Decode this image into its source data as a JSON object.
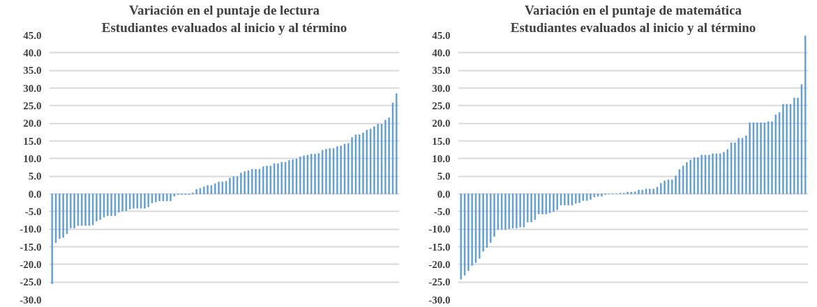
{
  "chart_data": [
    {
      "type": "bar",
      "title": "Variación en el puntaje de lectura",
      "subtitle": "Estudiantes evaluados al inicio y al término",
      "categories": [
        null,
        null,
        null,
        null,
        null,
        null,
        null,
        null,
        null,
        null,
        null,
        null,
        null,
        null,
        null,
        null,
        null,
        null,
        null,
        null,
        null,
        null,
        null,
        null,
        null,
        null,
        null,
        null,
        null,
        null,
        null,
        null,
        null,
        null,
        null,
        null,
        null,
        null,
        null,
        null,
        null,
        null,
        null,
        null,
        null,
        null,
        null,
        null,
        null,
        null,
        null,
        null,
        null,
        null,
        null,
        null,
        null,
        null,
        null,
        null,
        null,
        null,
        null,
        null,
        null,
        null,
        null,
        null,
        null,
        null,
        null,
        null,
        null,
        null,
        null,
        null,
        null,
        null,
        null,
        null,
        null,
        null,
        null,
        null,
        null,
        null,
        null,
        null,
        null,
        null,
        null,
        null,
        null,
        null
      ],
      "values": [
        -25.5,
        -13.8,
        -12.7,
        -12.4,
        -11.3,
        -9.7,
        -9.7,
        -9.0,
        -9.0,
        -9.0,
        -9.0,
        -8.8,
        -7.7,
        -7.3,
        -6.6,
        -6.2,
        -6.2,
        -6.2,
        -5.2,
        -4.9,
        -4.8,
        -4.3,
        -4.1,
        -4.1,
        -4.1,
        -4.1,
        -3.7,
        -2.6,
        -2.3,
        -2.0,
        -2.0,
        -2.0,
        -2.0,
        -0.7,
        -0.2,
        -0.2,
        -0.2,
        -0.2,
        0.3,
        1.3,
        1.6,
        2.0,
        2.4,
        2.4,
        2.9,
        3.4,
        3.4,
        3.6,
        4.5,
        4.9,
        4.9,
        5.9,
        6.3,
        6.6,
        7.0,
        7.0,
        7.0,
        7.7,
        7.9,
        7.9,
        8.6,
        8.6,
        9.0,
        9.0,
        9.5,
        9.7,
        9.9,
        10.5,
        10.8,
        11.0,
        11.3,
        11.3,
        11.5,
        12.4,
        12.7,
        12.9,
        12.9,
        13.4,
        13.6,
        14.1,
        14.3,
        16.0,
        16.8,
        16.8,
        17.3,
        18.1,
        18.4,
        19.1,
        19.8,
        19.8,
        20.9,
        21.6,
        25.8,
        28.4
      ],
      "color": "#5b9bd5",
      "ylim": [
        -30,
        45
      ],
      "yticks": [
        {
          "value": -30,
          "label": "-30.0"
        },
        {
          "value": -25,
          "label": "-25.0"
        },
        {
          "value": -20,
          "label": "-20.0"
        },
        {
          "value": -15,
          "label": "-15.0"
        },
        {
          "value": -10,
          "label": "-10.0"
        },
        {
          "value": -5,
          "label": "-5.0"
        },
        {
          "value": 0,
          "label": "0.0"
        },
        {
          "value": 5,
          "label": "5.0"
        },
        {
          "value": 10,
          "label": "10.0"
        },
        {
          "value": 15,
          "label": "15.0"
        },
        {
          "value": 20,
          "label": "20.0"
        },
        {
          "value": 25,
          "label": "25.0"
        },
        {
          "value": 30,
          "label": "30.0"
        },
        {
          "value": 35,
          "label": "35.0"
        },
        {
          "value": 40,
          "label": "40.0"
        },
        {
          "value": 45,
          "label": "45.0"
        }
      ],
      "grid": "y",
      "tick_labels": "y"
    },
    {
      "type": "bar",
      "title": "Variación en el puntaje de matemática",
      "subtitle": "Estudiantes evaluados al inicio y al término",
      "categories": [
        null,
        null,
        null,
        null,
        null,
        null,
        null,
        null,
        null,
        null,
        null,
        null,
        null,
        null,
        null,
        null,
        null,
        null,
        null,
        null,
        null,
        null,
        null,
        null,
        null,
        null,
        null,
        null,
        null,
        null,
        null,
        null,
        null,
        null,
        null,
        null,
        null,
        null,
        null,
        null,
        null,
        null,
        null,
        null,
        null,
        null,
        null,
        null,
        null,
        null,
        null,
        null,
        null,
        null,
        null,
        null,
        null,
        null,
        null,
        null,
        null,
        null,
        null,
        null,
        null,
        null,
        null,
        null,
        null,
        null,
        null,
        null,
        null,
        null,
        null,
        null,
        null,
        null,
        null,
        null,
        null,
        null,
        null,
        null,
        null,
        null,
        null,
        null,
        null,
        null,
        null,
        null,
        null,
        null
      ],
      "values": [
        -24.2,
        -23.1,
        -21.8,
        -20.3,
        -19.5,
        -18.3,
        -16.3,
        -15.2,
        -13.8,
        -12.1,
        -10.1,
        -10.1,
        -10.1,
        -9.9,
        -9.7,
        -9.7,
        -9.4,
        -9.4,
        -8.0,
        -8.0,
        -7.3,
        -5.7,
        -5.7,
        -5.7,
        -5.4,
        -5.0,
        -4.5,
        -3.2,
        -3.2,
        -3.2,
        -3.2,
        -2.7,
        -2.5,
        -1.9,
        -1.9,
        -1.6,
        -0.9,
        -0.7,
        -0.7,
        -0.2,
        0.0,
        0.0,
        0.0,
        0.2,
        0.2,
        0.5,
        0.5,
        0.6,
        1.1,
        1.1,
        1.4,
        1.4,
        1.4,
        1.9,
        3.0,
        3.7,
        4.0,
        4.0,
        5.1,
        6.9,
        7.9,
        8.9,
        9.6,
        10.3,
        10.3,
        11.0,
        11.0,
        11.0,
        11.4,
        11.4,
        11.4,
        11.8,
        12.6,
        14.5,
        14.5,
        15.8,
        15.8,
        16.5,
        20.2,
        20.2,
        20.2,
        20.2,
        20.2,
        20.5,
        20.5,
        22.4,
        23.1,
        25.4,
        25.4,
        25.4,
        27.2,
        27.2,
        31.0,
        44.8
      ],
      "color": "#5b9bd5",
      "ylim": [
        -30,
        45
      ],
      "yticks": [
        {
          "value": -30,
          "label": "-30.0"
        },
        {
          "value": -25,
          "label": "-25.0"
        },
        {
          "value": -20,
          "label": "-20.0"
        },
        {
          "value": -15,
          "label": "-15.0"
        },
        {
          "value": -10,
          "label": "-10.0"
        },
        {
          "value": -5,
          "label": "-5.0"
        },
        {
          "value": 0,
          "label": "0.0"
        },
        {
          "value": 5,
          "label": "5.0"
        },
        {
          "value": 10,
          "label": "10.0"
        },
        {
          "value": 15,
          "label": "15.0"
        },
        {
          "value": 20,
          "label": "20.0"
        },
        {
          "value": 25,
          "label": "25.0"
        },
        {
          "value": 30,
          "label": "30.0"
        },
        {
          "value": 35,
          "label": "35.0"
        },
        {
          "value": 40,
          "label": "40.0"
        },
        {
          "value": 45,
          "label": "45.0"
        }
      ],
      "grid": "y",
      "tick_labels": "y"
    }
  ]
}
